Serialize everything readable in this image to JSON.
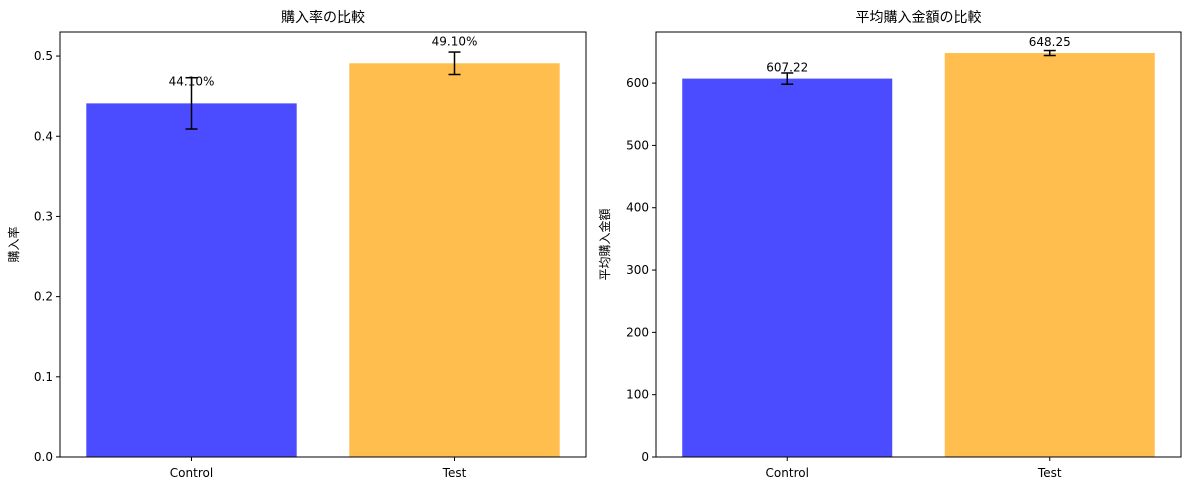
{
  "chart_data": [
    {
      "type": "bar",
      "title": "購入率の比較",
      "xlabel": "",
      "ylabel": "購入率",
      "categories": [
        "Control",
        "Test"
      ],
      "values": [
        0.441,
        0.491
      ],
      "error": [
        0.032,
        0.014
      ],
      "data_labels": [
        "44.10%",
        "49.10%"
      ],
      "colors": [
        "#4b4bff",
        "#ffbe4d"
      ],
      "ylim": [
        0,
        0.53
      ],
      "yticks": [
        0,
        0.1,
        0.2,
        0.3,
        0.4,
        0.5
      ],
      "ytick_labels": [
        "0.0",
        "0.1",
        "0.2",
        "0.3",
        "0.4",
        "0.5"
      ],
      "grid": false
    },
    {
      "type": "bar",
      "title": "平均購入金額の比較",
      "xlabel": "",
      "ylabel": "平均購入金額",
      "categories": [
        "Control",
        "Test"
      ],
      "values": [
        607.22,
        648.25
      ],
      "error": [
        9,
        4
      ],
      "data_labels": [
        "607.22",
        "648.25"
      ],
      "colors": [
        "#4b4bff",
        "#ffbe4d"
      ],
      "ylim": [
        0,
        682
      ],
      "yticks": [
        0,
        100,
        200,
        300,
        400,
        500,
        600
      ],
      "ytick_labels": [
        "0",
        "100",
        "200",
        "300",
        "400",
        "500",
        "600"
      ],
      "grid": false
    }
  ]
}
